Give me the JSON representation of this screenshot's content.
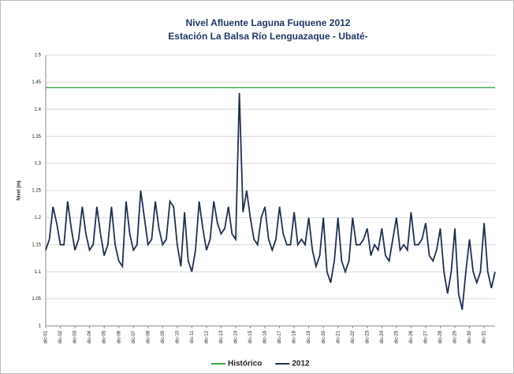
{
  "chart_data": {
    "type": "line",
    "title": "Nivel Afluente Laguna Fuquene 2012",
    "subtitle": "Estación La Balsa Río Lenguazaque - Ubaté-",
    "y_label": "Nivel (m)",
    "ylim": [
      1,
      1.5
    ],
    "yticks": [
      1,
      1.05,
      1.1,
      1.15,
      1.2,
      1.25,
      1.3,
      1.35,
      1.4,
      1.45,
      1.5
    ],
    "grid": true,
    "legend": "bottom",
    "categories": [
      "dic-01",
      null,
      null,
      null,
      "dic-02",
      null,
      null,
      null,
      "dic-03",
      null,
      null,
      null,
      "dic-04",
      null,
      null,
      null,
      "dic-05",
      null,
      null,
      null,
      "dic-06",
      null,
      null,
      null,
      "dic-07",
      null,
      null,
      null,
      "dic-08",
      null,
      null,
      null,
      "dic-09",
      null,
      null,
      null,
      "dic-10",
      null,
      null,
      null,
      "dic-11",
      null,
      null,
      null,
      "dic-12",
      null,
      null,
      null,
      "dic-13",
      null,
      null,
      null,
      "dic-14",
      null,
      null,
      null,
      "dic-15",
      null,
      null,
      null,
      "dic-16",
      null,
      null,
      null,
      "dic-17",
      null,
      null,
      null,
      "dic-18",
      null,
      null,
      null,
      "dic-19",
      null,
      null,
      null,
      "dic-20",
      null,
      null,
      null,
      "dic-21",
      null,
      null,
      null,
      "dic-22",
      null,
      null,
      null,
      "dic-23",
      null,
      null,
      null,
      "dic-24",
      null,
      null,
      null,
      "dic-25",
      null,
      null,
      null,
      "dic-26",
      null,
      null,
      null,
      "dic-27",
      null,
      null,
      null,
      "dic-28",
      null,
      null,
      null,
      "dic-29",
      null,
      null,
      null,
      "dic-30",
      null,
      null,
      null,
      "dic-31",
      null,
      null,
      null
    ],
    "series": [
      {
        "name": "Histórico",
        "color": "#3aa64a",
        "values": [
          1.44,
          1.44,
          1.44,
          1.44,
          1.44,
          1.44,
          1.44,
          1.44,
          1.44,
          1.44,
          1.44,
          1.44,
          1.44,
          1.44,
          1.44,
          1.44,
          1.44,
          1.44,
          1.44,
          1.44,
          1.44,
          1.44,
          1.44,
          1.44,
          1.44,
          1.44,
          1.44,
          1.44,
          1.44,
          1.44,
          1.44,
          1.44,
          1.44,
          1.44,
          1.44,
          1.44,
          1.44,
          1.44,
          1.44,
          1.44,
          1.44,
          1.44,
          1.44,
          1.44,
          1.44,
          1.44,
          1.44,
          1.44,
          1.44,
          1.44,
          1.44,
          1.44,
          1.44,
          1.44,
          1.44,
          1.44,
          1.44,
          1.44,
          1.44,
          1.44,
          1.44,
          1.44,
          1.44,
          1.44,
          1.44,
          1.44,
          1.44,
          1.44,
          1.44,
          1.44,
          1.44,
          1.44,
          1.44,
          1.44,
          1.44,
          1.44,
          1.44,
          1.44,
          1.44,
          1.44,
          1.44,
          1.44,
          1.44,
          1.44,
          1.44,
          1.44,
          1.44,
          1.44,
          1.44,
          1.44,
          1.44,
          1.44,
          1.44,
          1.44,
          1.44,
          1.44,
          1.44,
          1.44,
          1.44,
          1.44,
          1.44,
          1.44,
          1.44,
          1.44,
          1.44,
          1.44,
          1.44,
          1.44,
          1.44,
          1.44,
          1.44,
          1.44,
          1.44,
          1.44,
          1.44,
          1.44,
          1.44,
          1.44,
          1.44,
          1.44,
          1.44,
          1.44,
          1.44,
          1.44
        ]
      },
      {
        "name": "2012",
        "color": "#1f3050",
        "values": [
          1.14,
          1.16,
          1.22,
          1.19,
          1.15,
          1.15,
          1.23,
          1.18,
          1.14,
          1.16,
          1.22,
          1.17,
          1.14,
          1.15,
          1.22,
          1.17,
          1.13,
          1.15,
          1.22,
          1.15,
          1.12,
          1.11,
          1.23,
          1.17,
          1.14,
          1.15,
          1.25,
          1.2,
          1.15,
          1.16,
          1.23,
          1.18,
          1.15,
          1.16,
          1.23,
          1.22,
          1.15,
          1.11,
          1.21,
          1.12,
          1.1,
          1.14,
          1.23,
          1.18,
          1.14,
          1.16,
          1.23,
          1.19,
          1.17,
          1.18,
          1.22,
          1.17,
          1.16,
          1.43,
          1.21,
          1.25,
          1.2,
          1.16,
          1.15,
          1.2,
          1.22,
          1.16,
          1.14,
          1.16,
          1.22,
          1.17,
          1.15,
          1.15,
          1.21,
          1.15,
          1.16,
          1.15,
          1.2,
          1.14,
          1.11,
          1.13,
          1.2,
          1.1,
          1.08,
          1.12,
          1.2,
          1.12,
          1.1,
          1.12,
          1.2,
          1.15,
          1.15,
          1.16,
          1.18,
          1.13,
          1.15,
          1.14,
          1.18,
          1.13,
          1.12,
          1.16,
          1.2,
          1.14,
          1.15,
          1.14,
          1.21,
          1.15,
          1.15,
          1.16,
          1.19,
          1.13,
          1.12,
          1.14,
          1.18,
          1.1,
          1.06,
          1.1,
          1.18,
          1.06,
          1.03,
          1.1,
          1.16,
          1.1,
          1.08,
          1.1,
          1.19,
          1.1,
          1.07,
          1.1
        ]
      }
    ]
  }
}
